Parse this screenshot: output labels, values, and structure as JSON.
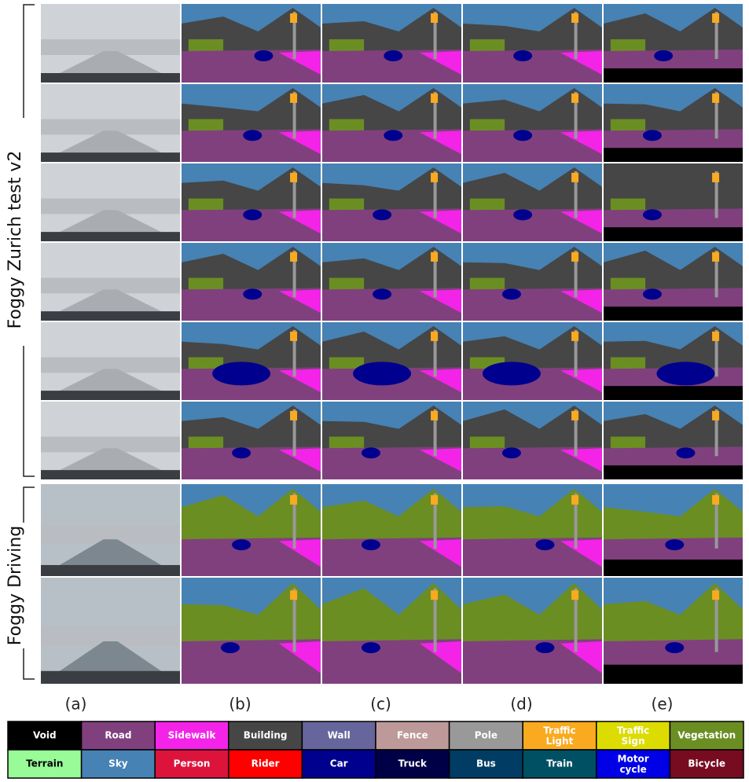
{
  "row_groups": [
    {
      "label": "Foggy Zurich test v2"
    },
    {
      "label": "Foggy Driving"
    }
  ],
  "columns": [
    "(a)",
    "(b)",
    "(c)",
    "(d)",
    "(e)"
  ],
  "legend": [
    {
      "label": "Void",
      "color": "#000000"
    },
    {
      "label": "Road",
      "color": "#80407e"
    },
    {
      "label": "Sidewalk",
      "color": "#f423e8"
    },
    {
      "label": "Building",
      "color": "#464646"
    },
    {
      "label": "Wall",
      "color": "#66669c"
    },
    {
      "label": "Fence",
      "color": "#be9999"
    },
    {
      "label": "Pole",
      "color": "#999999"
    },
    {
      "label": "Traffic Light",
      "color": "#faaa1e"
    },
    {
      "label": "Traffic Sign",
      "color": "#dcdc00"
    },
    {
      "label": "Vegetation",
      "color": "#6b8e23"
    },
    {
      "label": "Terrain",
      "color": "#98fb98"
    },
    {
      "label": "Sky",
      "color": "#4682b4"
    },
    {
      "label": "Person",
      "color": "#dc143c"
    },
    {
      "label": "Rider",
      "color": "#ff0000"
    },
    {
      "label": "Car",
      "color": "#00008e"
    },
    {
      "label": "Truck",
      "color": "#000046"
    },
    {
      "label": "Bus",
      "color": "#003c64"
    },
    {
      "label": "Train",
      "color": "#005064"
    },
    {
      "label": "Motor cycle",
      "color": "#0000e6"
    },
    {
      "label": "Bicycle",
      "color": "#770b20"
    }
  ]
}
